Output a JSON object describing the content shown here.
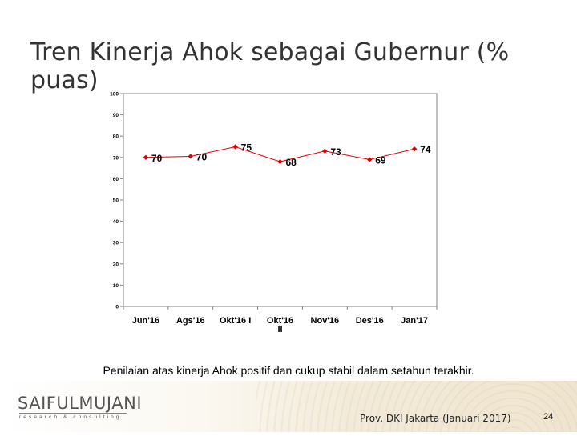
{
  "slide": {
    "title": "Tren Kinerja Ahok sebagai Gubernur (% puas)",
    "caption": "Penilaian atas kinerja Ahok positif dan cukup stabil dalam setahun terakhir.",
    "footer_source": "Prov. DKI Jakarta (Januari 2017)",
    "page_number": "24",
    "logo_main": "SAIFULMUJANI",
    "logo_sub": "research & consulting"
  },
  "colors": {
    "series": "#dd0000",
    "axis": "#808080",
    "title": "#333333"
  },
  "chart_data": {
    "type": "line",
    "title": "",
    "xlabel": "",
    "ylabel": "",
    "ylim": [
      0,
      100
    ],
    "yticks": [
      0,
      10,
      20,
      30,
      40,
      50,
      60,
      70,
      80,
      90,
      100
    ],
    "grid": false,
    "legend": "none",
    "categories": [
      "Jun'16",
      "Ags'16",
      "Okt'16 I",
      "Okt'16 II",
      "Nov'16",
      "Des'16",
      "Jan'17"
    ],
    "series": [
      {
        "values": [
          70,
          70.5,
          75,
          68,
          73,
          69,
          74
        ],
        "labels": [
          "70",
          "70",
          "75",
          "68",
          "73",
          "69",
          "74"
        ]
      }
    ]
  }
}
